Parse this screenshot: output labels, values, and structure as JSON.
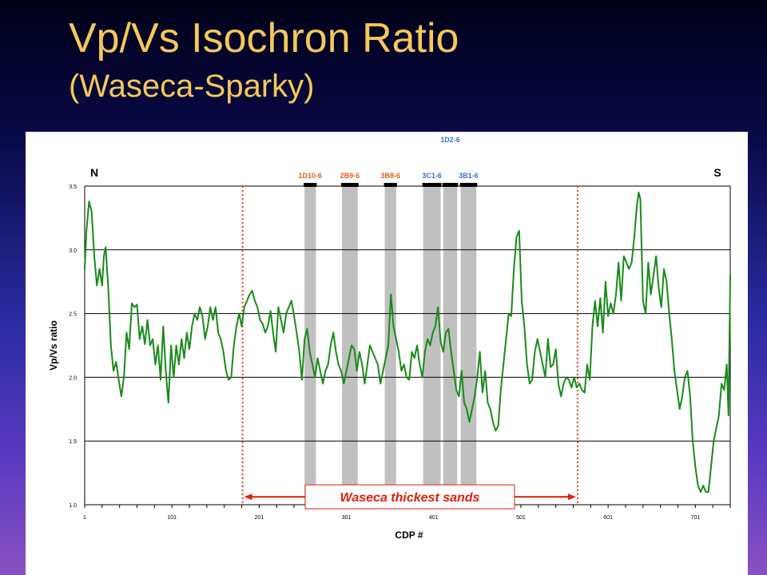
{
  "slide": {
    "title": "Vp/Vs Isochron Ratio",
    "subtitle": "(Waseca-Sparky)"
  },
  "chart_data": {
    "type": "line",
    "xlabel": "CDP #",
    "ylabel": "Vp/Vs ratio",
    "xlim": [
      1,
      741
    ],
    "ylim": [
      1.0,
      3.5
    ],
    "x_ticks": [
      "1",
      "101",
      "201",
      "301",
      "401",
      "501",
      "601",
      "701"
    ],
    "y_ticks": [
      "1.0",
      "1.5",
      "2.0",
      "2.5",
      "3.0",
      "3.5"
    ],
    "grid": true,
    "direction_labels": {
      "left": "N",
      "right": "S"
    },
    "colors": {
      "line": "#1a8a1a",
      "dotted": "#e8401a",
      "bands": "#c0c0c0",
      "arrow": "#e02010"
    },
    "series": [
      {
        "values": [
          [
            1,
            2.85
          ],
          [
            3,
            3.15
          ],
          [
            6,
            3.38
          ],
          [
            9,
            3.3
          ],
          [
            12,
            2.95
          ],
          [
            15,
            2.72
          ],
          [
            18,
            2.85
          ],
          [
            21,
            2.72
          ],
          [
            23,
            2.95
          ],
          [
            25,
            3.02
          ],
          [
            28,
            2.7
          ],
          [
            31,
            2.25
          ],
          [
            34,
            2.05
          ],
          [
            37,
            2.12
          ],
          [
            40,
            1.98
          ],
          [
            43,
            1.85
          ],
          [
            46,
            2.0
          ],
          [
            49,
            2.35
          ],
          [
            52,
            2.22
          ],
          [
            55,
            2.58
          ],
          [
            58,
            2.55
          ],
          [
            61,
            2.57
          ],
          [
            64,
            2.3
          ],
          [
            67,
            2.4
          ],
          [
            70,
            2.26
          ],
          [
            73,
            2.45
          ],
          [
            76,
            2.25
          ],
          [
            79,
            2.3
          ],
          [
            82,
            2.1
          ],
          [
            85,
            2.25
          ],
          [
            88,
            1.98
          ],
          [
            91,
            2.4
          ],
          [
            94,
            2.05
          ],
          [
            97,
            1.8
          ],
          [
            100,
            2.25
          ],
          [
            103,
            2.0
          ],
          [
            106,
            2.25
          ],
          [
            109,
            2.1
          ],
          [
            112,
            2.3
          ],
          [
            115,
            2.15
          ],
          [
            118,
            2.35
          ],
          [
            121,
            2.22
          ],
          [
            124,
            2.4
          ],
          [
            127,
            2.5
          ],
          [
            130,
            2.45
          ],
          [
            133,
            2.55
          ],
          [
            136,
            2.48
          ],
          [
            139,
            2.3
          ],
          [
            142,
            2.4
          ],
          [
            145,
            2.55
          ],
          [
            148,
            2.45
          ],
          [
            151,
            2.55
          ],
          [
            154,
            2.35
          ],
          [
            157,
            2.3
          ],
          [
            160,
            2.2
          ],
          [
            163,
            2.05
          ],
          [
            166,
            1.98
          ],
          [
            169,
            2.0
          ],
          [
            172,
            2.25
          ],
          [
            175,
            2.4
          ],
          [
            178,
            2.5
          ],
          [
            181,
            2.4
          ],
          [
            184,
            2.55
          ],
          [
            187,
            2.6
          ],
          [
            190,
            2.65
          ],
          [
            193,
            2.68
          ],
          [
            196,
            2.6
          ],
          [
            199,
            2.55
          ],
          [
            202,
            2.45
          ],
          [
            205,
            2.42
          ],
          [
            208,
            2.35
          ],
          [
            211,
            2.4
          ],
          [
            214,
            2.52
          ],
          [
            217,
            2.35
          ],
          [
            220,
            2.2
          ],
          [
            223,
            2.55
          ],
          [
            226,
            2.45
          ],
          [
            229,
            2.35
          ],
          [
            232,
            2.5
          ],
          [
            235,
            2.55
          ],
          [
            238,
            2.6
          ],
          [
            241,
            2.48
          ],
          [
            244,
            2.35
          ],
          [
            247,
            2.2
          ],
          [
            250,
            1.98
          ],
          [
            253,
            2.3
          ],
          [
            256,
            2.38
          ],
          [
            259,
            2.2
          ],
          [
            262,
            2.1
          ],
          [
            265,
            2.0
          ],
          [
            268,
            2.15
          ],
          [
            271,
            2.05
          ],
          [
            274,
            1.95
          ],
          [
            277,
            2.05
          ],
          [
            280,
            2.1
          ],
          [
            283,
            2.25
          ],
          [
            286,
            2.35
          ],
          [
            289,
            2.2
          ],
          [
            292,
            2.1
          ],
          [
            295,
            2.05
          ],
          [
            298,
            1.95
          ],
          [
            301,
            2.05
          ],
          [
            304,
            2.15
          ],
          [
            307,
            2.25
          ],
          [
            310,
            2.22
          ],
          [
            313,
            2.05
          ],
          [
            316,
            2.2
          ],
          [
            319,
            2.1
          ],
          [
            322,
            1.95
          ],
          [
            325,
            2.1
          ],
          [
            328,
            2.25
          ],
          [
            331,
            2.2
          ],
          [
            334,
            2.15
          ],
          [
            337,
            2.1
          ],
          [
            340,
            1.95
          ],
          [
            343,
            2.05
          ],
          [
            346,
            2.15
          ],
          [
            349,
            2.25
          ],
          [
            352,
            2.65
          ],
          [
            355,
            2.4
          ],
          [
            358,
            2.3
          ],
          [
            361,
            2.2
          ],
          [
            364,
            2.05
          ],
          [
            367,
            2.1
          ],
          [
            370,
            2.0
          ],
          [
            373,
            1.98
          ],
          [
            376,
            2.2
          ],
          [
            379,
            2.15
          ],
          [
            382,
            2.25
          ],
          [
            385,
            2.1
          ],
          [
            388,
            2.0
          ],
          [
            391,
            2.2
          ],
          [
            394,
            2.3
          ],
          [
            397,
            2.25
          ],
          [
            400,
            2.35
          ],
          [
            403,
            2.4
          ],
          [
            406,
            2.55
          ],
          [
            409,
            2.28
          ],
          [
            412,
            2.2
          ],
          [
            415,
            2.35
          ],
          [
            418,
            2.38
          ],
          [
            421,
            2.2
          ],
          [
            424,
            2.05
          ],
          [
            427,
            1.9
          ],
          [
            430,
            1.85
          ],
          [
            433,
            2.05
          ],
          [
            436,
            1.8
          ],
          [
            439,
            1.75
          ],
          [
            442,
            1.65
          ],
          [
            445,
            1.75
          ],
          [
            448,
            1.85
          ],
          [
            451,
            2.0
          ],
          [
            454,
            2.2
          ],
          [
            457,
            1.88
          ],
          [
            460,
            2.05
          ],
          [
            463,
            1.8
          ],
          [
            466,
            1.75
          ],
          [
            469,
            1.65
          ],
          [
            472,
            1.58
          ],
          [
            475,
            1.62
          ],
          [
            478,
            1.9
          ],
          [
            481,
            2.1
          ],
          [
            484,
            2.3
          ],
          [
            487,
            2.5
          ],
          [
            490,
            2.48
          ],
          [
            493,
            2.85
          ],
          [
            496,
            3.1
          ],
          [
            499,
            3.15
          ],
          [
            502,
            2.6
          ],
          [
            505,
            2.4
          ],
          [
            508,
            2.1
          ],
          [
            511,
            1.95
          ],
          [
            514,
            1.98
          ],
          [
            517,
            2.2
          ],
          [
            520,
            2.3
          ],
          [
            523,
            2.2
          ],
          [
            526,
            2.1
          ],
          [
            529,
            2.0
          ],
          [
            532,
            2.3
          ],
          [
            535,
            2.08
          ],
          [
            538,
            2.1
          ],
          [
            541,
            2.22
          ],
          [
            544,
            1.95
          ],
          [
            547,
            1.85
          ],
          [
            550,
            1.95
          ],
          [
            553,
            2.0
          ],
          [
            556,
            1.98
          ],
          [
            559,
            1.92
          ],
          [
            562,
            2.0
          ],
          [
            565,
            1.92
          ],
          [
            568,
            1.95
          ],
          [
            571,
            1.9
          ],
          [
            574,
            1.88
          ],
          [
            577,
            2.1
          ],
          [
            580,
            1.98
          ],
          [
            583,
            2.4
          ],
          [
            586,
            2.6
          ],
          [
            589,
            2.4
          ],
          [
            592,
            2.62
          ],
          [
            595,
            2.35
          ],
          [
            598,
            2.75
          ],
          [
            601,
            2.48
          ],
          [
            604,
            2.58
          ],
          [
            607,
            2.5
          ],
          [
            610,
            2.65
          ],
          [
            613,
            2.9
          ],
          [
            616,
            2.6
          ],
          [
            619,
            2.95
          ],
          [
            622,
            2.9
          ],
          [
            625,
            2.85
          ],
          [
            628,
            2.9
          ],
          [
            631,
            3.1
          ],
          [
            634,
            3.35
          ],
          [
            636,
            3.45
          ],
          [
            638,
            3.4
          ],
          [
            641,
            2.6
          ],
          [
            644,
            2.5
          ],
          [
            647,
            2.9
          ],
          [
            650,
            2.65
          ],
          [
            653,
            2.8
          ],
          [
            656,
            2.95
          ],
          [
            659,
            2.7
          ],
          [
            662,
            2.55
          ],
          [
            665,
            2.85
          ],
          [
            668,
            2.75
          ],
          [
            671,
            2.5
          ],
          [
            674,
            2.3
          ],
          [
            677,
            2.05
          ],
          [
            680,
            1.9
          ],
          [
            683,
            1.75
          ],
          [
            686,
            1.85
          ],
          [
            689,
            2.0
          ],
          [
            692,
            2.05
          ],
          [
            695,
            1.85
          ],
          [
            698,
            1.5
          ],
          [
            701,
            1.3
          ],
          [
            704,
            1.15
          ],
          [
            707,
            1.1
          ],
          [
            710,
            1.15
          ],
          [
            713,
            1.1
          ],
          [
            716,
            1.1
          ],
          [
            719,
            1.3
          ],
          [
            722,
            1.5
          ],
          [
            725,
            1.6
          ],
          [
            728,
            1.7
          ],
          [
            731,
            1.95
          ],
          [
            734,
            1.9
          ],
          [
            737,
            2.1
          ],
          [
            739,
            1.7
          ],
          [
            741,
            2.8
          ]
        ]
      }
    ],
    "dotted_verticals": [
      {
        "x": 182,
        "y_top": 3.5,
        "y_bottom": 1.0
      },
      {
        "x": 566,
        "y_top": 3.5,
        "y_bottom": 1.0
      }
    ],
    "well_bands": [
      {
        "label": "1D10-6",
        "label_color": "#e06020",
        "x": [
          253,
          266
        ]
      },
      {
        "label": "2B9-6",
        "label_color": "#e06020",
        "x": [
          296,
          314
        ]
      },
      {
        "label": "3B8-6",
        "label_color": "#e06020",
        "x": [
          345,
          358
        ]
      },
      {
        "label": "3C1-6",
        "label_color": "#3a70d0",
        "x": [
          389,
          409
        ]
      },
      {
        "label": "1D2-6",
        "label_color": "#3a70d0",
        "x": [
          412,
          428
        ]
      },
      {
        "label": "3B1-6",
        "label_color": "#3a70d0",
        "x": [
          432,
          450
        ]
      }
    ],
    "annotation": {
      "text": "Waseca thickest sands",
      "x_from": 182,
      "x_to": 566,
      "y": 1.25
    }
  }
}
